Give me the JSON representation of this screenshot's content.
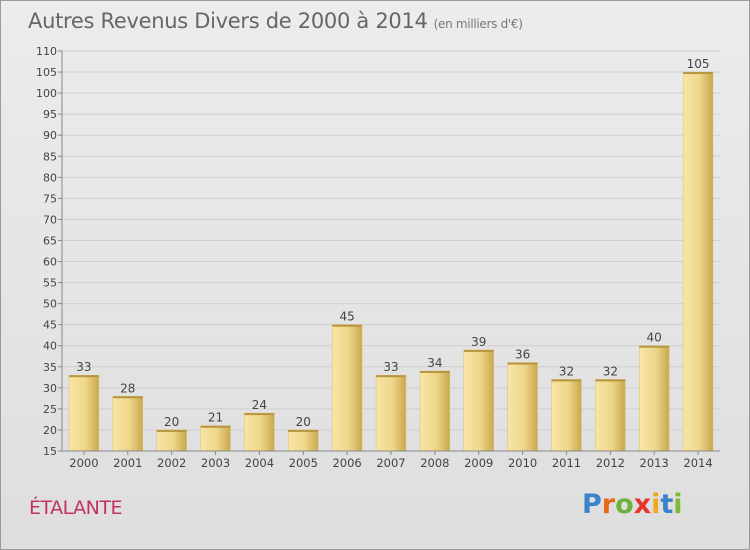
{
  "header": {
    "title": "Autres Revenus Divers de 2000 à 2014",
    "subtitle": "(en milliers d'€)"
  },
  "commune": "ÉTALANTE",
  "brand": {
    "letters": [
      "P",
      "r",
      "o",
      "x",
      "i",
      "t",
      "i"
    ],
    "colors": [
      "#3a83c9",
      "#e8671b",
      "#6db33f",
      "#e8342d",
      "#f0a820",
      "#3a83c9",
      "#7dba3c"
    ]
  },
  "colors": {
    "bar_light": "#f8e6a6",
    "bar_dark": "#c9a84e",
    "axis": "#888888",
    "grid": "#cfcfcf",
    "text": "#444444"
  },
  "chart_data": {
    "type": "bar",
    "categories": [
      "2000",
      "2001",
      "2002",
      "2003",
      "2004",
      "2005",
      "2006",
      "2007",
      "2008",
      "2009",
      "2010",
      "2011",
      "2012",
      "2013",
      "2014"
    ],
    "values": [
      33,
      28,
      20,
      21,
      24,
      20,
      45,
      33,
      34,
      39,
      36,
      32,
      32,
      40,
      105
    ],
    "data_labels": [
      "33",
      "28",
      "20",
      "21",
      "24",
      "20",
      "45",
      "33",
      "34",
      "39",
      "36",
      "32",
      "32",
      "40",
      "105"
    ],
    "ylim": [
      15,
      110
    ],
    "yticks": [
      "15",
      "20",
      "25",
      "30",
      "35",
      "40",
      "45",
      "50",
      "55",
      "60",
      "65",
      "70",
      "75",
      "80",
      "85",
      "90",
      "95",
      "100",
      "105",
      "110"
    ],
    "grid": true,
    "legend": "none"
  }
}
